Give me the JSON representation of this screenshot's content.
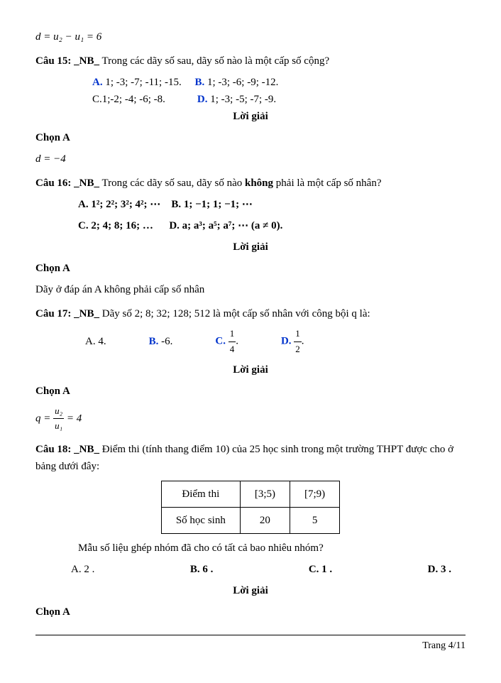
{
  "eq_top": "d = u₂ − u₁ = 6",
  "q15": {
    "label": "Câu 15:",
    "tag": "_NB_",
    "text": "Trong các dãy số sau, dãy số nào là một cấp số cộng?",
    "A_lbl": "A.",
    "A": "1; -3; -7; -11; -15.",
    "B_lbl": "B.",
    "B": "1; -3; -6; -9; -12.",
    "C": "C.1;-2; -4; -6; -8.",
    "D_lbl": "D.",
    "D": "1; -3; -5; -7; -9.",
    "loigiai": "Lời giải",
    "chon": "Chọn A",
    "eq": "d = −4"
  },
  "q16": {
    "label": "Câu 16:",
    "tag": "_NB_",
    "text_1": "Trong các dãy số sau, dãy số nào ",
    "text_bold": "không",
    "text_2": " phải là một cấp số nhân?",
    "A": "A. 1²; 2²; 3²; 4²; ⋯",
    "B": "B. 1; −1; 1; −1; ⋯",
    "C": "C. 2; 4; 8; 16; …",
    "D": "D. a; a³; a⁵; a⁷; ⋯ (a ≠ 0).",
    "loigiai": "Lời giải",
    "chon": "Chọn A",
    "expl": "Dãy ở đáp án A không phải cấp số nhân"
  },
  "q17": {
    "label": "Câu 17:",
    "tag": "_NB_",
    "text": "Dãy số 2; 8; 32; 128; 512 là một cấp số nhân với công bội q là:",
    "A": "A. 4.",
    "B_lbl": "B.",
    "B": "-6.",
    "C_lbl": "C.",
    "C_num": "1",
    "C_den": "4",
    "D_lbl": "D.",
    "D_num": "1",
    "D_den": "2",
    "loigiai": "Lời giải",
    "chon": "Chọn A",
    "eq_lhs": "q =",
    "eq_num": "u₂",
    "eq_den": "u₁",
    "eq_rhs": "= 4"
  },
  "q18": {
    "label": "Câu 18:",
    "tag": "_NB_",
    "text": "Điểm thi (tính thang điểm 10) của 25 học sinh trong một trường THPT được cho ở bảng dưới đây:",
    "table": {
      "h1": "Điểm thi",
      "h2": "[3;5)",
      "h3": "[7;9)",
      "r1": "Số học sinh",
      "r2": "20",
      "r3": "5"
    },
    "q": "Mẫu số liệu ghép nhóm đã cho có tất cả bao nhiêu nhóm?",
    "A": "A. 2 .",
    "B": "B. 6 .",
    "C": "C. 1 .",
    "D": "D. 3 .",
    "loigiai": "Lời giải",
    "chon": "Chọn A"
  },
  "footer": "Trang 4/11"
}
